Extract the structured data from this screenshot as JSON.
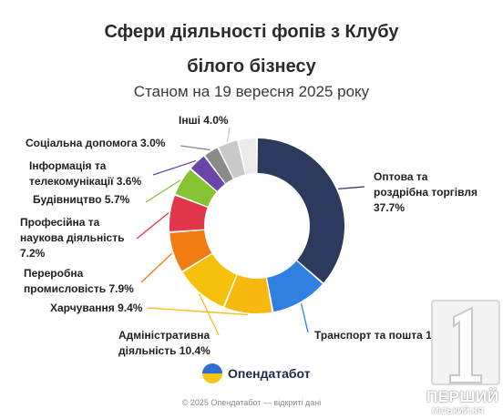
{
  "chart_data": {
    "type": "pie",
    "title_line1": "Сфери діяльності фопів з Клубу",
    "title_line2": "білого бізнесу",
    "subtitle": "Станом на 19 вересня 2025 року",
    "slices": [
      {
        "label": "Оптова та роздрібна торгівля",
        "label_lines": [
          "Оптова та",
          "роздрібна торгівля",
          "37.7%"
        ],
        "value": 37.7,
        "color": "#2c3a5e",
        "label_side": "right"
      },
      {
        "label": "Транспорт та пошта",
        "label_lines": [
          "Транспорт та пошта 11.1%"
        ],
        "value": 11.1,
        "color": "#2f80e0",
        "label_side": "right"
      },
      {
        "label": "Харчування",
        "label_lines": [
          "Харчування 9.4%"
        ],
        "value": 9.4,
        "color": "#f7b90f",
        "label_side": "left"
      },
      {
        "label": "Адміністративна діяльність",
        "label_lines": [
          "Адміністративна",
          "діяльність 10.4%"
        ],
        "value": 10.4,
        "color": "#f5c10d",
        "label_side": "left"
      },
      {
        "label": "Переробна промисловість",
        "label_lines": [
          "Переробна",
          "промисловість 7.9%"
        ],
        "value": 7.9,
        "color": "#f07c12",
        "label_side": "left"
      },
      {
        "label": "Професійна та наукова діяльність",
        "label_lines": [
          "Професійна та",
          "наукова діяльність",
          "7.2%"
        ],
        "value": 7.2,
        "color": "#e2364a",
        "label_side": "left"
      },
      {
        "label": "Будівництво",
        "label_lines": [
          "Будівництво 5.7%"
        ],
        "value": 5.7,
        "color": "#86c232",
        "label_side": "left"
      },
      {
        "label": "Інформація та телекомунікації",
        "label_lines": [
          "Інформація та",
          "телекомунікації 3.6%"
        ],
        "value": 3.6,
        "color": "#6a46a8",
        "label_side": "left"
      },
      {
        "label": "Соціальна допомога",
        "label_lines": [
          "Соціальна допомога 3.0%"
        ],
        "value": 3.0,
        "color": "#8a8a8a",
        "label_side": "left"
      },
      {
        "label": "Інші",
        "label_lines": [
          "Інші 4.0%"
        ],
        "value": 4.0,
        "color": "#c9c9c9",
        "label_side": "top"
      },
      {
        "label": "",
        "label_lines": [],
        "value": 3.6,
        "color": "#ebebeb",
        "label_side": "none"
      }
    ]
  },
  "branding": {
    "logo_text": "Опендатабот",
    "footer": "© 2025 Опендатабот — відкриті дані",
    "watermark_line1": "ПЕРШИЙ",
    "watermark_line2": "МІСЬКИЙ.KR"
  }
}
